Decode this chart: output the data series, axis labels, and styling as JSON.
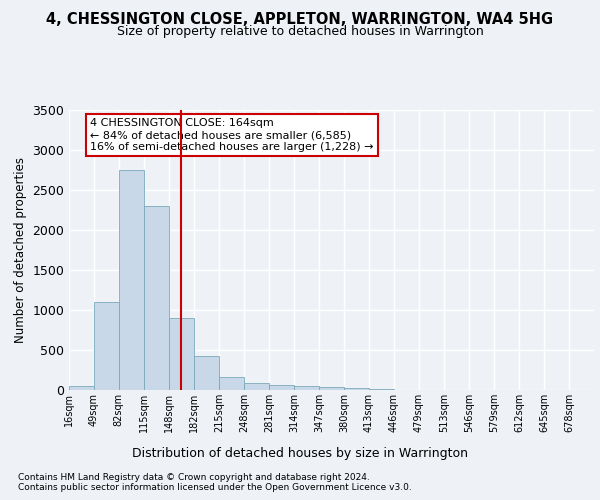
{
  "title1": "4, CHESSINGTON CLOSE, APPLETON, WARRINGTON, WA4 5HG",
  "title2": "Size of property relative to detached houses in Warrington",
  "xlabel": "Distribution of detached houses by size in Warrington",
  "ylabel": "Number of detached properties",
  "footnote1": "Contains HM Land Registry data © Crown copyright and database right 2024.",
  "footnote2": "Contains public sector information licensed under the Open Government Licence v3.0.",
  "bin_labels": [
    "16sqm",
    "49sqm",
    "82sqm",
    "115sqm",
    "148sqm",
    "182sqm",
    "215sqm",
    "248sqm",
    "281sqm",
    "314sqm",
    "347sqm",
    "380sqm",
    "413sqm",
    "446sqm",
    "479sqm",
    "513sqm",
    "546sqm",
    "579sqm",
    "612sqm",
    "645sqm",
    "678sqm"
  ],
  "bin_edges": [
    16,
    49,
    82,
    115,
    148,
    182,
    215,
    248,
    281,
    314,
    347,
    380,
    413,
    446,
    479,
    513,
    546,
    579,
    612,
    645,
    678,
    711
  ],
  "bar_heights": [
    50,
    1100,
    2750,
    2300,
    900,
    430,
    160,
    90,
    60,
    50,
    35,
    20,
    8,
    5,
    5,
    3,
    2,
    2,
    1,
    1,
    0
  ],
  "bar_color": "#c8d8e8",
  "bar_edge_color": "#7aaabb",
  "red_line_x": 164,
  "ylim": [
    0,
    3500
  ],
  "yticks": [
    0,
    500,
    1000,
    1500,
    2000,
    2500,
    3000,
    3500
  ],
  "annotation_box_text": "4 CHESSINGTON CLOSE: 164sqm\n← 84% of detached houses are smaller (6,585)\n16% of semi-detached houses are larger (1,228) →",
  "bg_color": "#eef2f7",
  "grid_color": "#ffffff"
}
